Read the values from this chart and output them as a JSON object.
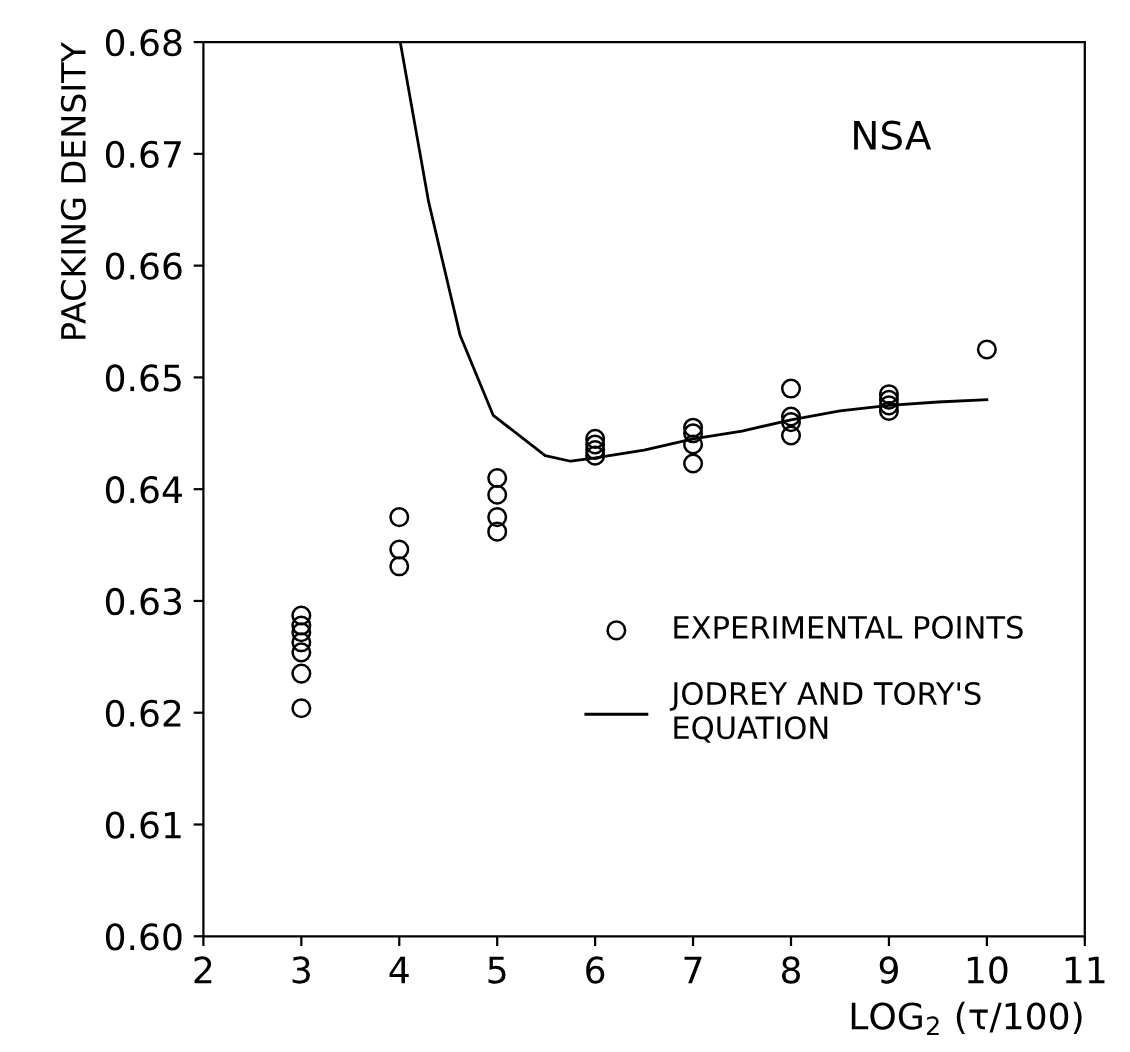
{
  "chart_data": {
    "type": "scatter",
    "xlabel": "LOG$_{2}$ (τ/100)",
    "ylabel": "PACKING DENSITY",
    "annotations": [
      "NSA"
    ],
    "xlim": [
      2,
      11
    ],
    "ylim": [
      0.6,
      0.68
    ],
    "xticks": [
      2,
      3,
      4,
      5,
      6,
      7,
      8,
      9,
      10,
      11
    ],
    "yticks": [
      {
        "value": 0.6,
        "label": "0.60"
      },
      {
        "value": 0.61,
        "label": "0.61"
      },
      {
        "value": 0.62,
        "label": "0.62"
      },
      {
        "value": 0.63,
        "label": "0.63"
      },
      {
        "value": 0.64,
        "label": "0.64"
      },
      {
        "value": 0.65,
        "label": "0.65"
      },
      {
        "value": 0.66,
        "label": "0.66"
      },
      {
        "value": 0.67,
        "label": "0.67"
      },
      {
        "value": 0.68,
        "label": "0.68"
      }
    ],
    "grid": false,
    "legend": "bottom right",
    "series": [
      {
        "name": "EXPERIMENTAL POINTS",
        "marker": "circle",
        "color": "#000000",
        "x": [
          3,
          3,
          3,
          3,
          3,
          3,
          3,
          4,
          4,
          4,
          5,
          5,
          5,
          5,
          6,
          6,
          6,
          6,
          7,
          7,
          7,
          7,
          8,
          8,
          8,
          8,
          9,
          9,
          9,
          9,
          10
        ],
        "values": [
          0.6287,
          0.6278,
          0.6272,
          0.6263,
          0.6254,
          0.6235,
          0.6204,
          0.6375,
          0.6346,
          0.6331,
          0.641,
          0.6395,
          0.6375,
          0.6362,
          0.6445,
          0.644,
          0.6435,
          0.643,
          0.6455,
          0.645,
          0.644,
          0.6423,
          0.649,
          0.6465,
          0.646,
          0.6448,
          0.6485,
          0.648,
          0.6475,
          0.647,
          0.6525
        ]
      },
      {
        "name": "JODREY AND TORY'S\nEQUATION",
        "type": "line",
        "marker": "none",
        "line_style": "solid",
        "color": "#000000",
        "x": [
          4.01,
          4.3,
          4.62,
          4.96,
          5.49,
          5.75,
          6,
          6.5,
          7,
          7.5,
          8,
          8.5,
          9,
          9.5,
          10
        ],
        "values": [
          0.68,
          0.6657,
          0.6538,
          0.6466,
          0.643,
          0.6425,
          0.6428,
          0.6435,
          0.6445,
          0.6452,
          0.6462,
          0.647,
          0.6475,
          0.6478,
          0.648
        ]
      }
    ]
  }
}
